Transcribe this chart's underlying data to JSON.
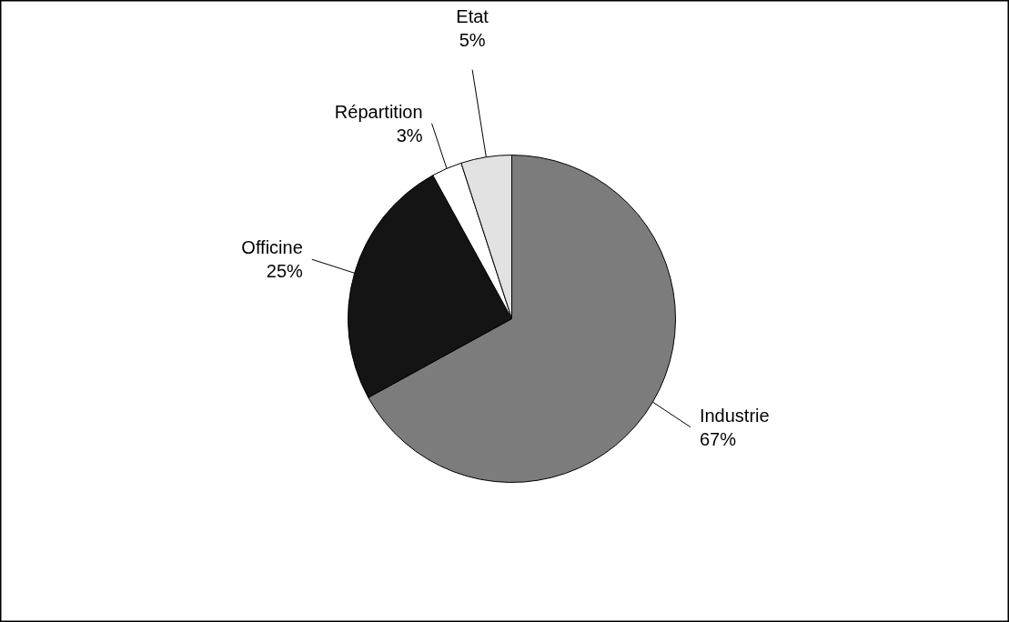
{
  "chart_data": {
    "type": "pie",
    "categories": [
      "Industrie",
      "Officine",
      "Répartition",
      "Etat"
    ],
    "values": [
      67,
      25,
      3,
      5
    ],
    "value_labels": [
      "67%",
      "25%",
      "3%",
      "5%"
    ],
    "colors": [
      "#7c7c7c",
      "#141414",
      "#ffffff",
      "#e2e2e2"
    ]
  }
}
